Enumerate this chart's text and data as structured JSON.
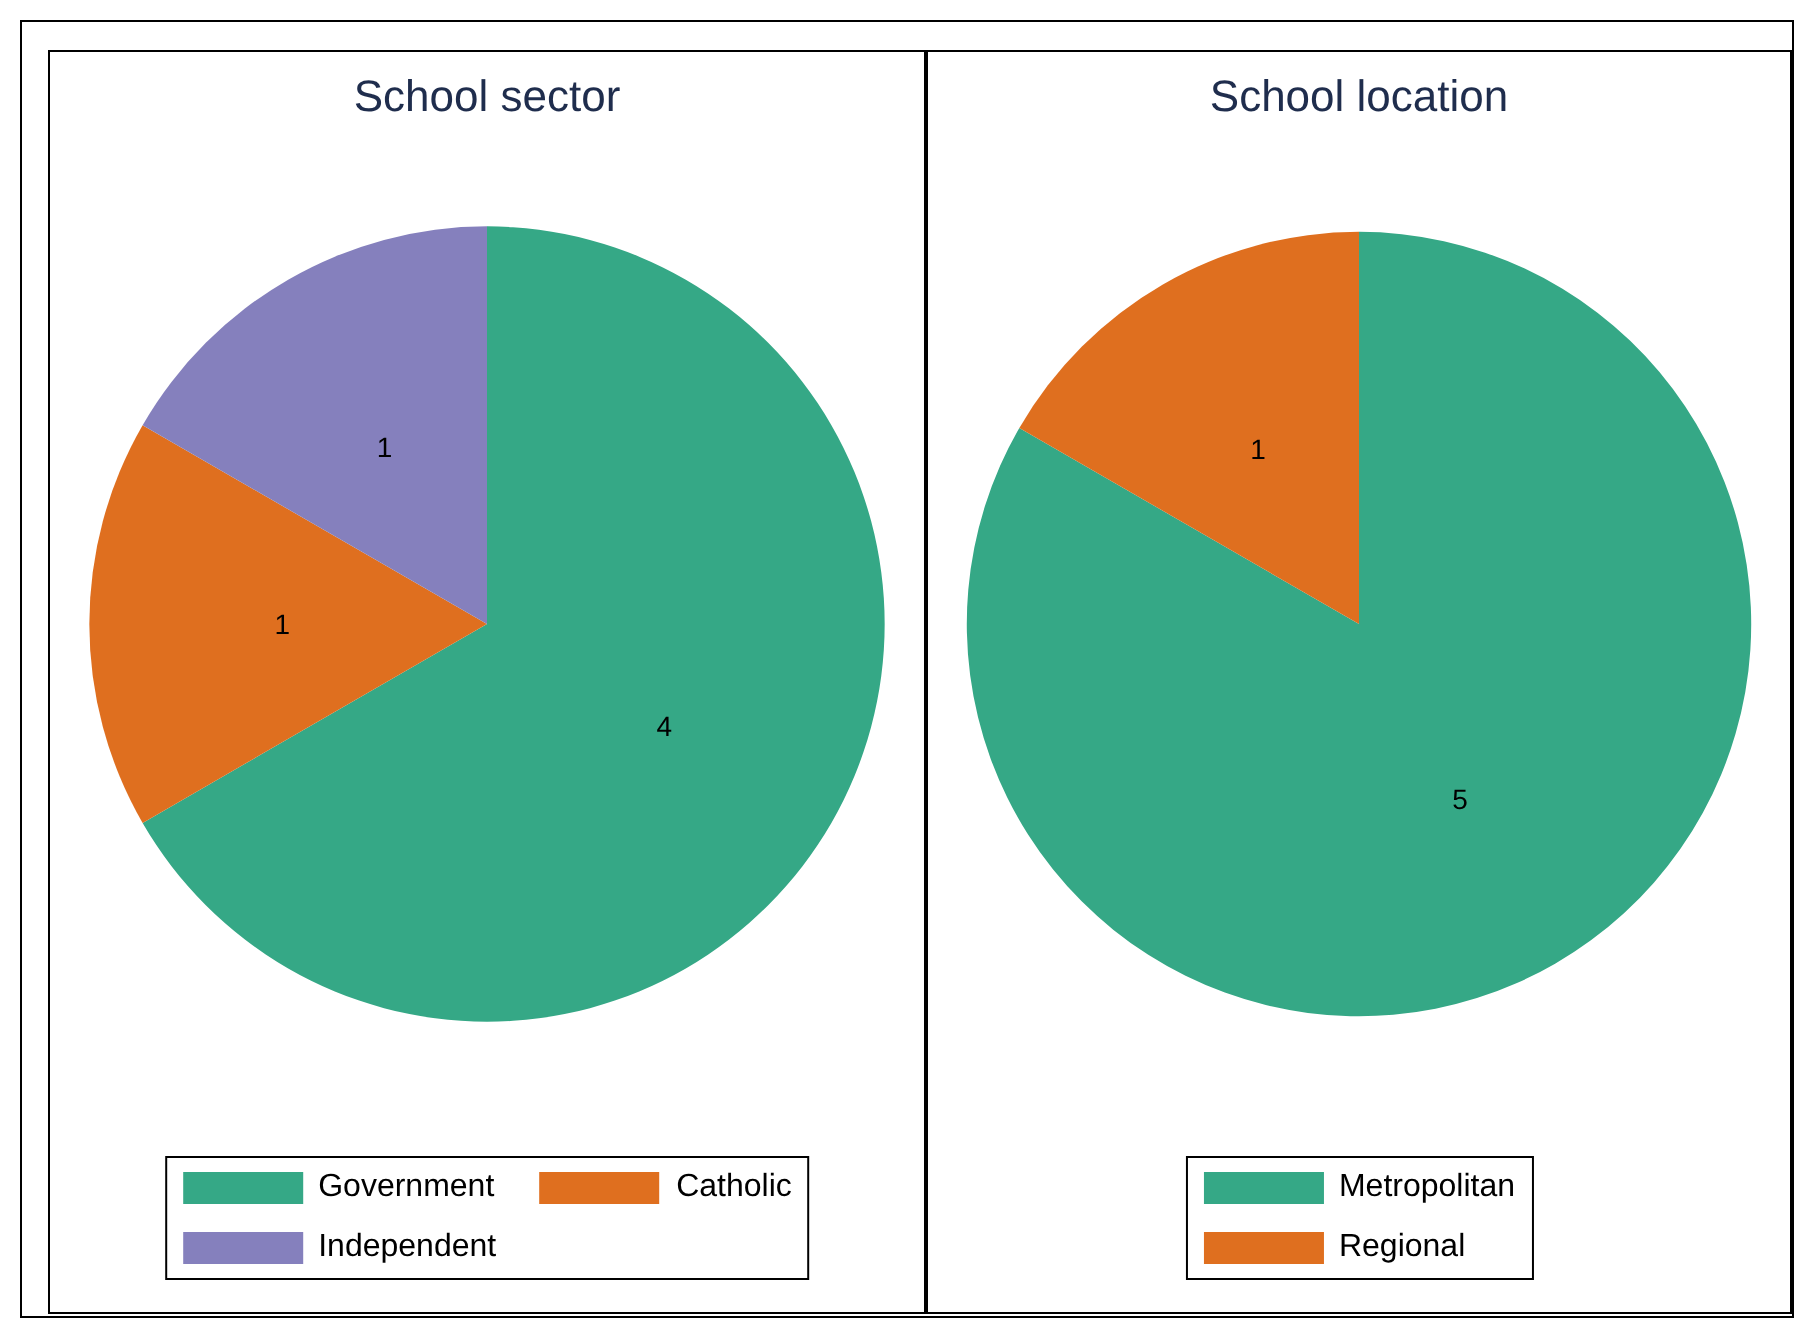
{
  "chart_data": [
    {
      "type": "pie",
      "title": "School sector",
      "categories": [
        "Government",
        "Catholic",
        "Independent"
      ],
      "values": [
        4,
        1,
        1
      ],
      "colors": [
        "#35a886",
        "#df6f1f",
        "#8580bd"
      ],
      "data_labels": true,
      "legend": "bottom"
    },
    {
      "type": "pie",
      "title": "School location",
      "categories": [
        "Metropolitan",
        "Regional"
      ],
      "values": [
        5,
        1
      ],
      "colors": [
        "#35a886",
        "#df6f1f"
      ],
      "data_labels": true,
      "legend": "bottom"
    }
  ]
}
